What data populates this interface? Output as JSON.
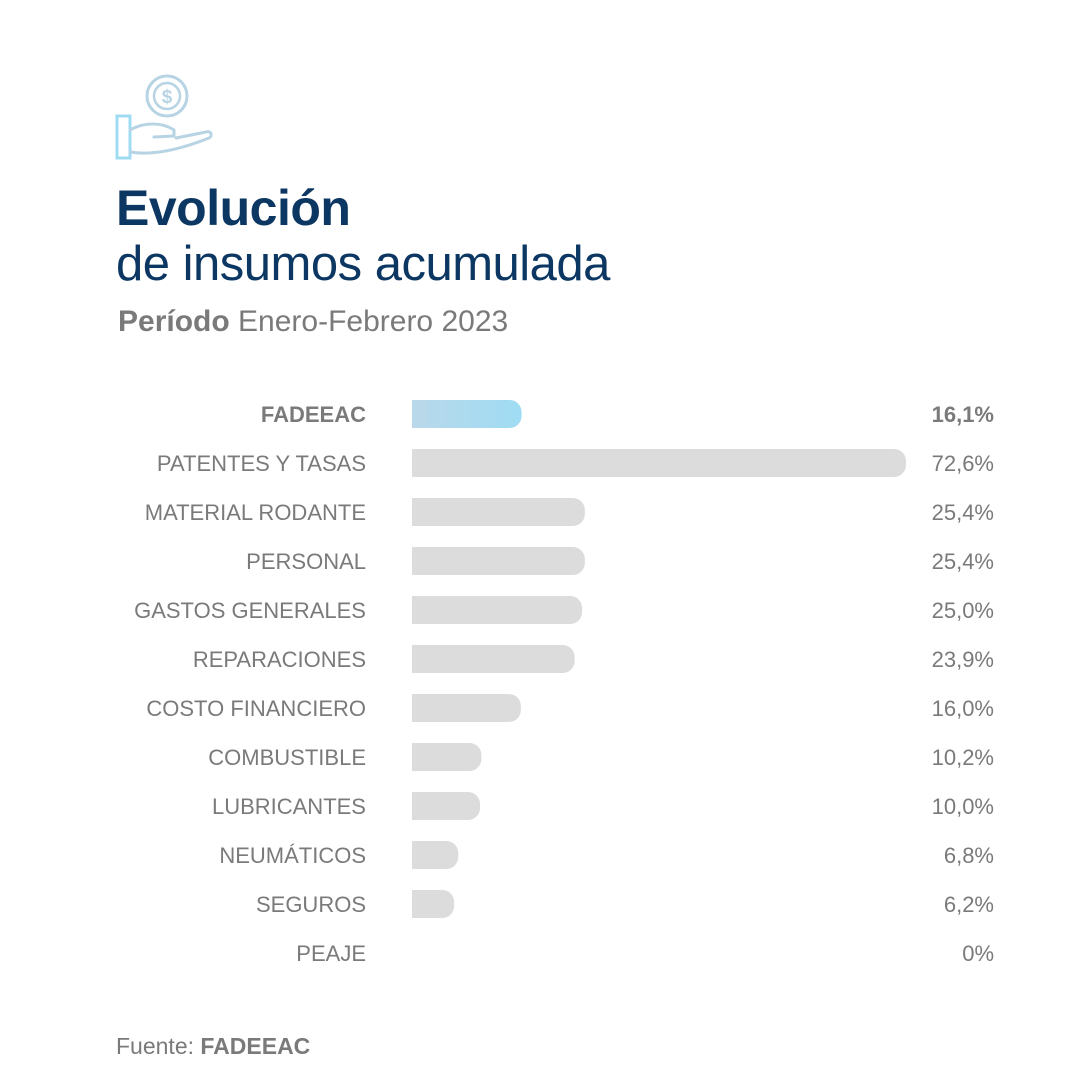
{
  "header": {
    "icon": "hand-holding-dollar-icon",
    "title_line1": "Evolución",
    "title_line2": "de insumos acumulada",
    "period_label": "Período",
    "period_value": "Enero-Febrero 2023"
  },
  "colors": {
    "title": "#0c3762",
    "text": "#7a7a7a",
    "highlight_bar_start": "#b9d8ea",
    "highlight_bar_end": "#9fdcf4",
    "bar": "#dcdcdc",
    "icon_hand": "#9fdcf4",
    "icon_coin": "#b7d4e4"
  },
  "chart_data": {
    "type": "bar",
    "orientation": "horizontal",
    "unit": "%",
    "xlim": [
      0,
      72.6
    ],
    "highlight": "FADEEAC",
    "categories": [
      "FADEEAC",
      "PATENTES Y TASAS",
      "MATERIAL RODANTE",
      "PERSONAL",
      "GASTOS GENERALES",
      "REPARACIONES",
      "COSTO FINANCIERO",
      "COMBUSTIBLE",
      "LUBRICANTES",
      "NEUMÁTICOS",
      "SEGUROS",
      "PEAJE"
    ],
    "values": [
      16.1,
      72.6,
      25.4,
      25.4,
      25.0,
      23.9,
      16.0,
      10.2,
      10.0,
      6.8,
      6.2,
      0
    ],
    "value_labels": [
      "16,1%",
      "72,6%",
      "25,4%",
      "25,4%",
      "25,0%",
      "23,9%",
      "16,0%",
      "10,2%",
      "10,0%",
      "6,8%",
      "6,2%",
      "0%"
    ]
  },
  "footer": {
    "source_label": "Fuente:",
    "source_name": "FADEEAC"
  }
}
